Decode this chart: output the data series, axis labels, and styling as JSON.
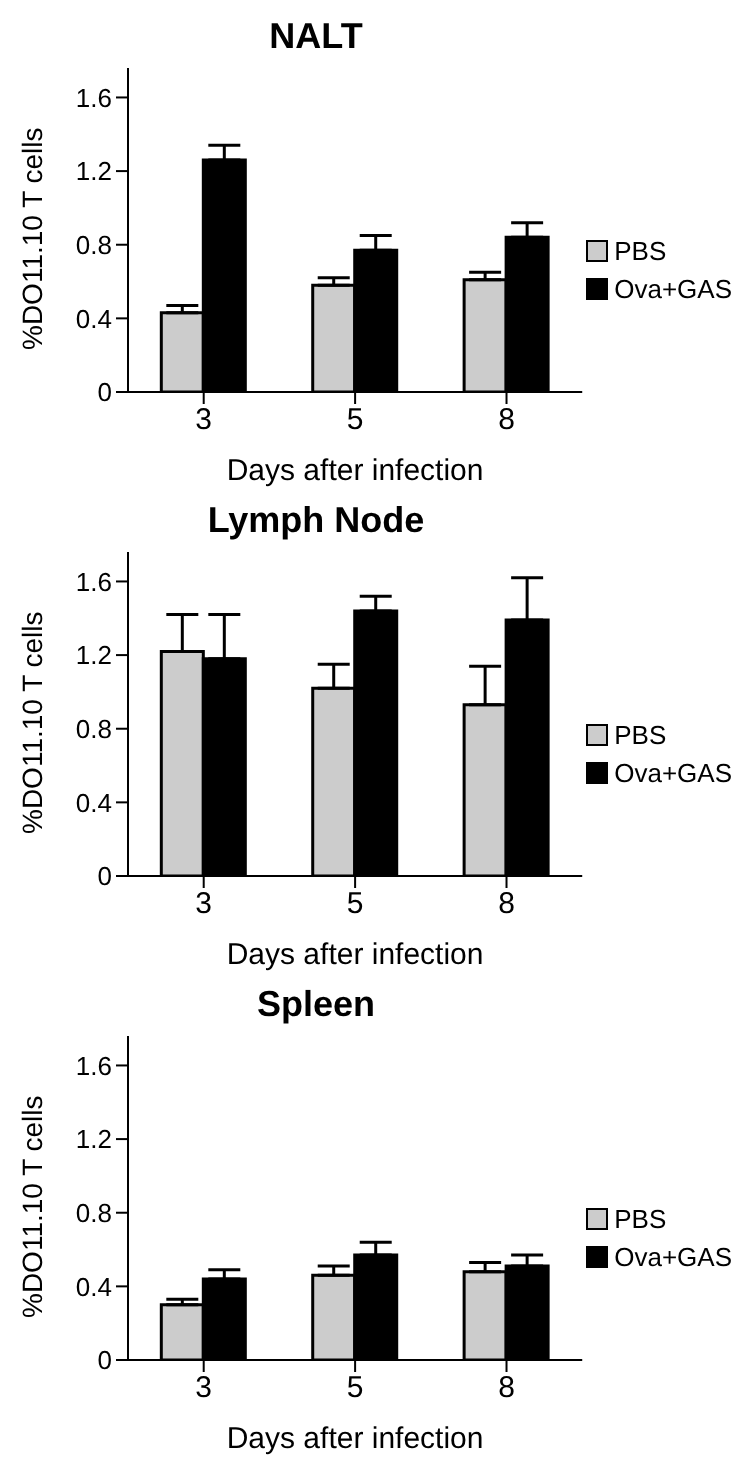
{
  "chart_data": [
    {
      "type": "bar",
      "title": "NALT",
      "xlabel": "Days after infection",
      "ylabel": "%DO11.10 T cells",
      "categories": [
        "3",
        "5",
        "8"
      ],
      "ylim": [
        0,
        1.76
      ],
      "yticks": [
        0,
        0.4,
        0.8,
        1.2,
        1.6
      ],
      "grid": false,
      "legend": "right",
      "series": [
        {
          "name": "PBS",
          "color": "#cccccc",
          "values": [
            0.43,
            0.58,
            0.61
          ],
          "errors": [
            [
              0.43,
              0.47
            ],
            [
              0.58,
              0.62
            ],
            [
              0.61,
              0.65
            ]
          ]
        },
        {
          "name": "Ova+GAS",
          "color": "#000000",
          "values": [
            1.26,
            0.77,
            0.84
          ],
          "errors": [
            [
              1.26,
              1.34
            ],
            [
              0.77,
              0.85
            ],
            [
              0.84,
              0.92
            ]
          ]
        }
      ]
    },
    {
      "type": "bar",
      "title": "Lymph Node",
      "xlabel": "Days after infection",
      "ylabel": "%DO11.10 T cells",
      "categories": [
        "3",
        "5",
        "8"
      ],
      "ylim": [
        0,
        1.76
      ],
      "yticks": [
        0,
        0.4,
        0.8,
        1.2,
        1.6
      ],
      "grid": false,
      "legend": "right",
      "series": [
        {
          "name": "PBS",
          "color": "#cccccc",
          "values": [
            1.22,
            1.02,
            0.93
          ],
          "errors": [
            [
              1.22,
              1.42
            ],
            [
              1.02,
              1.15
            ],
            [
              0.93,
              1.14
            ]
          ]
        },
        {
          "name": "Ova+GAS",
          "color": "#000000",
          "values": [
            1.18,
            1.44,
            1.39
          ],
          "errors": [
            [
              1.18,
              1.42
            ],
            [
              1.44,
              1.52
            ],
            [
              1.39,
              1.62
            ]
          ]
        }
      ]
    },
    {
      "type": "bar",
      "title": "Spleen",
      "xlabel": "Days after infection",
      "ylabel": "%DO11.10 T cells",
      "categories": [
        "3",
        "5",
        "8"
      ],
      "ylim": [
        0,
        1.76
      ],
      "yticks": [
        0,
        0.4,
        0.8,
        1.2,
        1.6
      ],
      "grid": false,
      "legend": "right",
      "series": [
        {
          "name": "PBS",
          "color": "#cccccc",
          "values": [
            0.3,
            0.46,
            0.48
          ],
          "errors": [
            [
              0.3,
              0.33
            ],
            [
              0.46,
              0.51
            ],
            [
              0.48,
              0.53
            ]
          ]
        },
        {
          "name": "Ova+GAS",
          "color": "#000000",
          "values": [
            0.44,
            0.57,
            0.51
          ],
          "errors": [
            [
              0.44,
              0.49
            ],
            [
              0.57,
              0.64
            ],
            [
              0.51,
              0.57
            ]
          ]
        }
      ]
    }
  ]
}
